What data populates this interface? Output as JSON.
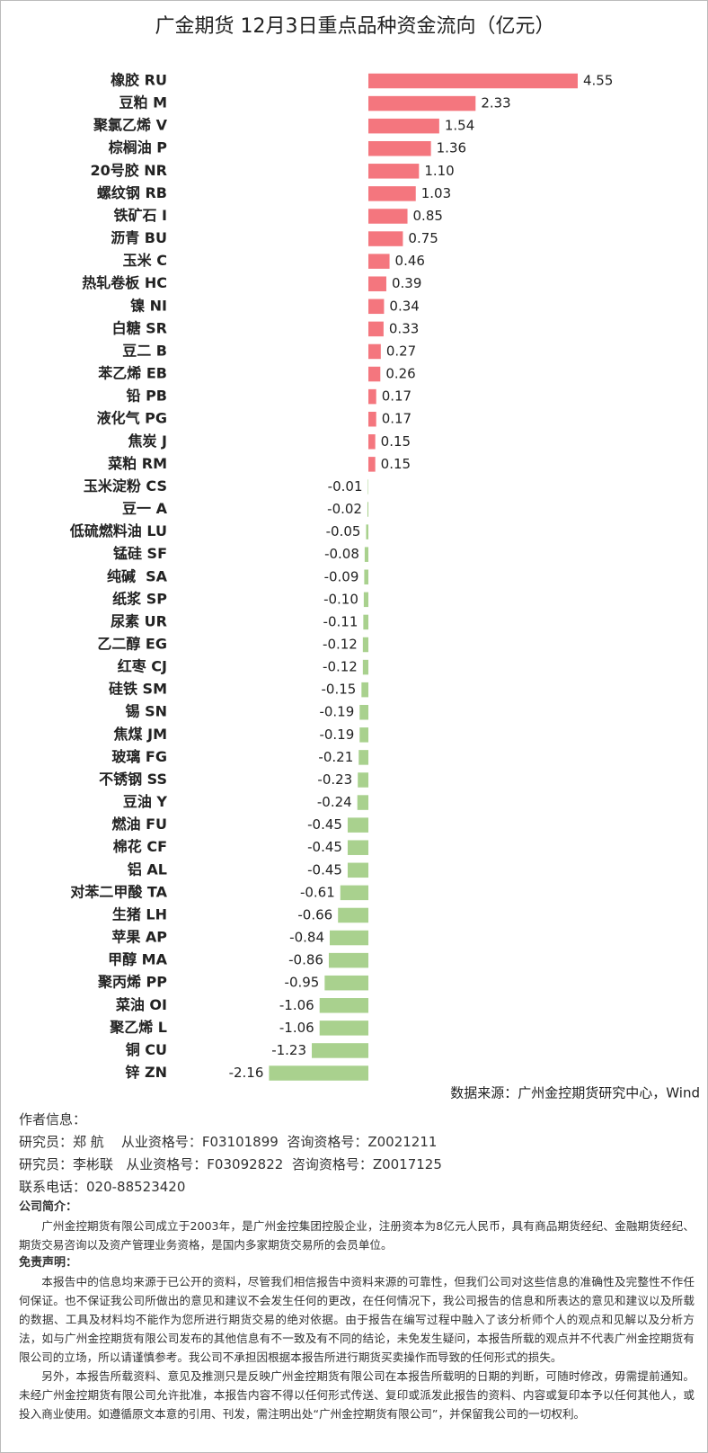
{
  "chart_data": {
    "type": "hbar",
    "title": "广金期货 12月3日重点品种资金流向（亿元）",
    "categories": [
      "橡胶 RU",
      "豆粕 M",
      "聚氯乙烯 V",
      "棕榈油 P",
      "20号胶 NR",
      "螺纹钢 RB",
      "铁矿石 I",
      "沥青 BU",
      "玉米 C",
      "热轧卷板 HC",
      "镍 NI",
      "白糖 SR",
      "豆二 B",
      "苯乙烯 EB",
      "铅 PB",
      "液化气 PG",
      "焦炭 J",
      "菜粕 RM",
      "玉米淀粉 CS",
      "豆一 A",
      "低硫燃料油 LU",
      "锰硅 SF",
      "纯碱  SA",
      "纸浆 SP",
      "尿素 UR",
      "乙二醇 EG",
      "红枣 CJ",
      "硅铁 SM",
      "锡 SN",
      "焦煤 JM",
      "玻璃 FG",
      "不锈钢 SS",
      "豆油 Y",
      "燃油 FU",
      "棉花 CF",
      "铝 AL",
      "对苯二甲酸 TA",
      "生猪 LH",
      "苹果 AP",
      "甲醇 MA",
      "聚丙烯 PP",
      "菜油 OI",
      "聚乙烯 L",
      "铜 CU",
      "锌 ZN"
    ],
    "values": [
      4.55,
      2.33,
      1.54,
      1.36,
      1.1,
      1.03,
      0.85,
      0.75,
      0.46,
      0.39,
      0.34,
      0.33,
      0.27,
      0.26,
      0.17,
      0.17,
      0.15,
      0.15,
      -0.01,
      -0.02,
      -0.05,
      -0.08,
      -0.09,
      -0.1,
      -0.11,
      -0.12,
      -0.12,
      -0.15,
      -0.19,
      -0.19,
      -0.21,
      -0.23,
      -0.24,
      -0.45,
      -0.45,
      -0.45,
      -0.61,
      -0.66,
      -0.84,
      -0.86,
      -0.95,
      -1.06,
      -1.06,
      -1.23,
      -2.16
    ],
    "value_labels": [
      "4.55",
      "2.33",
      "1.54",
      "1.36",
      "1.10",
      "1.03",
      "0.85",
      "0.75",
      "0.46",
      "0.39",
      "0.34",
      "0.33",
      "0.27",
      "0.26",
      "0.17",
      "0.17",
      "0.15",
      "0.15",
      "-0.01",
      "-0.02",
      "-0.05",
      "-0.08",
      "-0.09",
      "-0.10",
      "-0.11",
      "-0.12",
      "-0.12",
      "-0.15",
      "-0.19",
      "-0.19",
      "-0.21",
      "-0.23",
      "-0.24",
      "-0.45",
      "-0.45",
      "-0.45",
      "-0.61",
      "-0.66",
      "-0.84",
      "-0.86",
      "-0.95",
      "-1.06",
      "-1.06",
      "-1.23",
      "-2.16"
    ],
    "positive_color": "#f4767e",
    "negative_color": "#a9d18e",
    "source": "数据来源：广州金控期货研究中心，Wind"
  },
  "footer": {
    "author_heading": "作者信息：",
    "researchers": [
      "研究员：郑 航    从业资格号：F03101899  咨询资格号：Z0021211",
      "研究员：李彬联   从业资格号：F03092822  咨询资格号：Z0017125"
    ],
    "phone": "联系电话：020-88523420",
    "company_heading": "公司简介：",
    "company_text": "广州金控期货有限公司成立于2003年，是广州金控集团控股企业，注册资本为8亿元人民币，具有商品期货经纪、金融期货经纪、期货交易咨询以及资产管理业务资格，是国内多家期货交易所的会员单位。",
    "disclaimer_heading": "免责声明：",
    "disclaimer": [
      "本报告中的信息均来源于已公开的资料，尽管我们相信报告中资料来源的可靠性，但我们公司对这些信息的准确性及完整性不作任何保证。也不保证我公司所做出的意见和建议不会发生任何的更改，在任何情况下，我公司报告的信息和所表达的意见和建议以及所载的数据、工具及材料均不能作为您所进行期货交易的绝对依据。由于报告在编写过程中融入了该分析师个人的观点和见解以及分析方法，如与广州金控期货有限公司发布的其他信息有不一致及有不同的结论，未免发生疑问，本报告所载的观点并不代表广州金控期货有限公司的立场，所以请谨慎参考。我公司不承担因根据本报告所进行期货买卖操作而导致的任何形式的损失。",
      "另外，本报告所载资料、意见及推测只是反映广州金控期货有限公司在本报告所载明的日期的判断，可随时修改，毋需提前通知。未经广州金控期货有限公司允许批准，本报告内容不得以任何形式传送、复印或派发此报告的资料、内容或复印本予以任何其他人，或投入商业使用。如遵循原文本意的引用、刊发，需注明出处“广州金控期货有限公司”，并保留我公司的一切权利。"
    ]
  }
}
